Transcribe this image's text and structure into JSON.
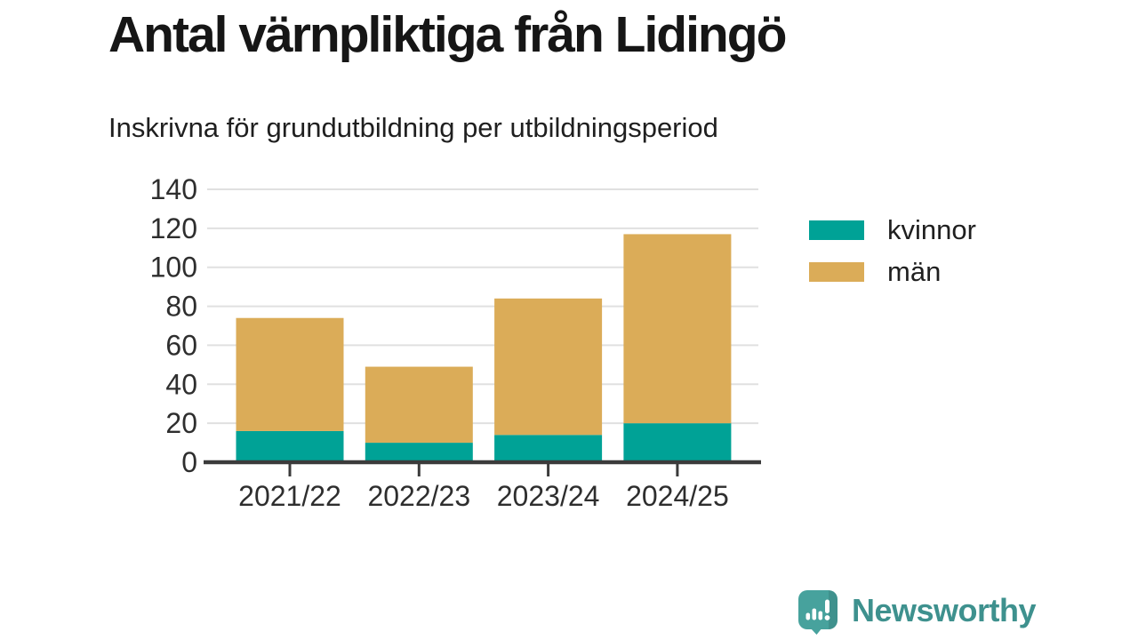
{
  "header": {
    "title": "Antal värnpliktiga från Lidingö",
    "subtitle": "Inskrivna för grundutbildning per utbildningsperiod"
  },
  "chart_data": {
    "type": "bar",
    "stacked": true,
    "title": "Antal värnpliktiga från Lidingö",
    "subtitle": "Inskrivna för grundutbildning per utbildningsperiod",
    "categories": [
      "2021/22",
      "2022/23",
      "2023/24",
      "2024/25"
    ],
    "series": [
      {
        "name": "kvinnor",
        "color": "#00a296",
        "values": [
          16,
          10,
          14,
          20
        ]
      },
      {
        "name": "män",
        "color": "#dbac58",
        "values": [
          58,
          39,
          70,
          97
        ]
      }
    ],
    "stacked_totals": [
      74,
      49,
      84,
      117
    ],
    "xlabel": "",
    "ylabel": "",
    "ylim": [
      0,
      140
    ],
    "yticks": [
      0,
      20,
      40,
      60,
      80,
      100,
      120,
      140
    ],
    "grid": "horizontal",
    "gridline_color": "#e0e0e0",
    "axis_color": "#3b3b3b",
    "label_color": "#2e2e2e",
    "legend_position": "right"
  },
  "legend": {
    "items": [
      {
        "label": "kvinnor",
        "color": "#00a296"
      },
      {
        "label": "män",
        "color": "#dbac58"
      }
    ]
  },
  "footer": {
    "brand": "Newsworthy",
    "brand_color": "#3e918e",
    "icon": "newsworthy-speech-bubble-bar-chart-icon",
    "icon_color": "#47a29d"
  }
}
